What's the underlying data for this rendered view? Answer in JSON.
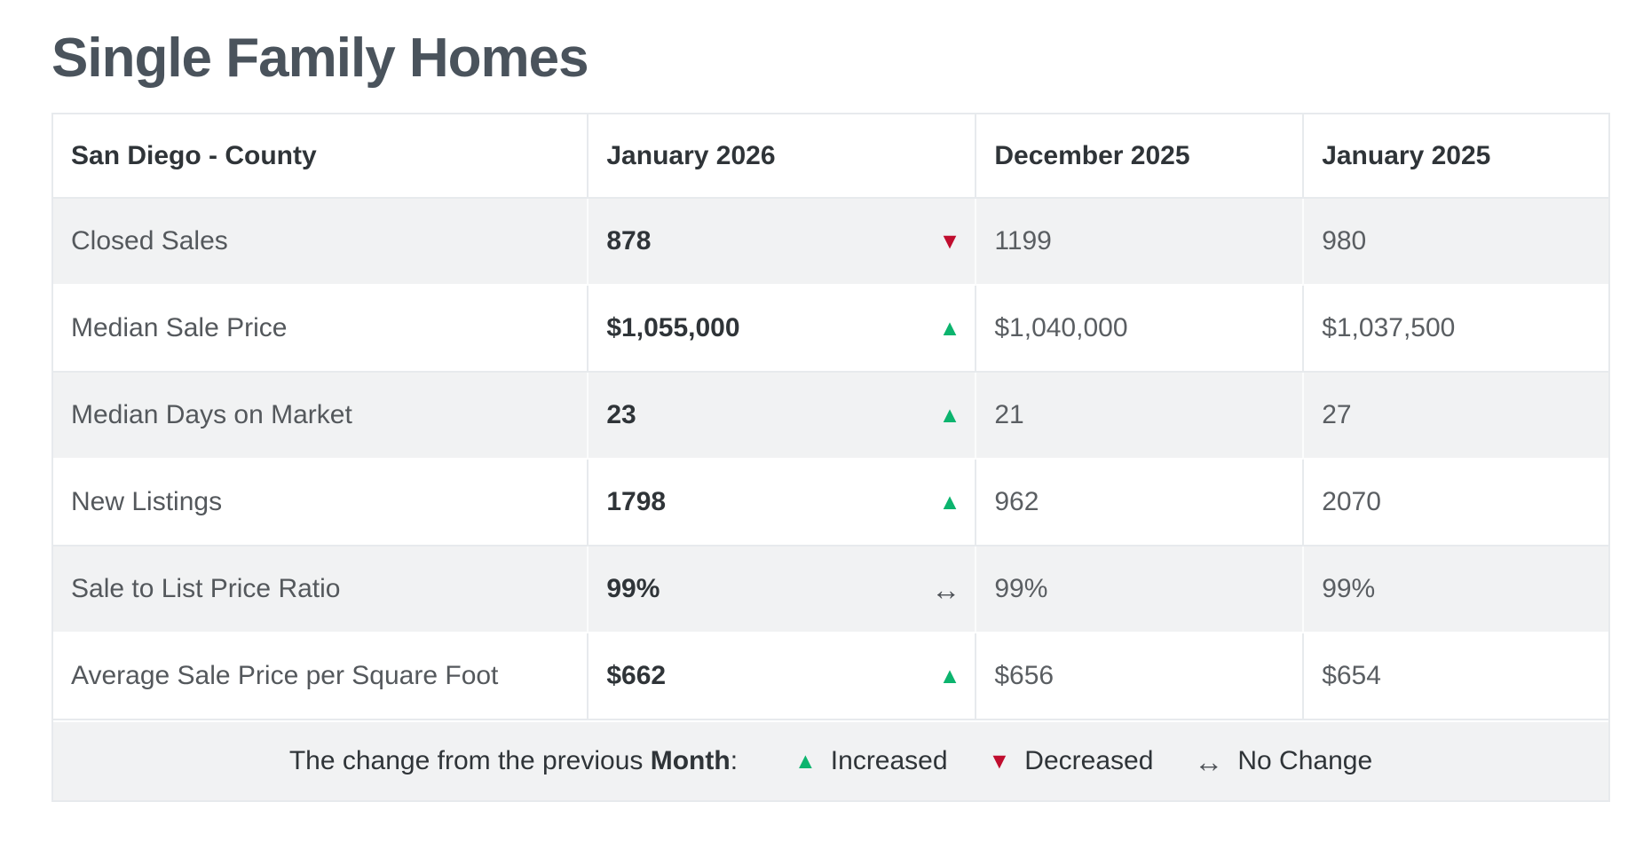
{
  "colors": {
    "increase": "#0cb46e",
    "decrease": "#c00d2e",
    "neutral": "#4d5156",
    "title_text": "#4a535c",
    "header_text": "#2f3438",
    "label_text": "#54585c",
    "value_text": "#5a5e62",
    "row_alt_bg": "#f1f2f3",
    "border": "#e7eaed"
  },
  "chart_data": {
    "type": "table",
    "title": "Single Family Homes",
    "region_label": "San Diego - County",
    "columns": [
      "San Diego - County",
      "January 2026",
      "December 2025",
      "January 2025"
    ],
    "rows": [
      {
        "label": "Closed Sales",
        "current": "878",
        "change": {
          "glyph": "▼",
          "state": "down",
          "meaning": "Decreased"
        },
        "prev_month": "1199",
        "prev_year": "980"
      },
      {
        "label": "Median Sale Price",
        "current": "$1,055,000",
        "change": {
          "glyph": "▲",
          "state": "up",
          "meaning": "Increased"
        },
        "prev_month": "$1,040,000",
        "prev_year": "$1,037,500"
      },
      {
        "label": "Median Days on Market",
        "current": "23",
        "change": {
          "glyph": "▲",
          "state": "up",
          "meaning": "Increased"
        },
        "prev_month": "21",
        "prev_year": "27"
      },
      {
        "label": "New Listings",
        "current": "1798",
        "change": {
          "glyph": "▲",
          "state": "up",
          "meaning": "Increased"
        },
        "prev_month": "962",
        "prev_year": "2070"
      },
      {
        "label": "Sale to List Price Ratio",
        "current": "99%",
        "change": {
          "glyph": "↔",
          "state": "same",
          "meaning": "No Change"
        },
        "prev_month": "99%",
        "prev_year": "99%"
      },
      {
        "label": "Average Sale Price per Square Foot",
        "current": "$662",
        "change": {
          "glyph": "▲",
          "state": "up",
          "meaning": "Increased"
        },
        "prev_month": "$656",
        "prev_year": "$654"
      }
    ],
    "legend": {
      "prefix": "The change from the previous ",
      "emphasis": "Month",
      "colon": ":",
      "items": [
        {
          "glyph": "▲",
          "state": "up",
          "label": "Increased"
        },
        {
          "glyph": "▼",
          "state": "down",
          "label": "Decreased"
        },
        {
          "glyph": "↔",
          "state": "same",
          "label": "No Change"
        }
      ]
    }
  }
}
